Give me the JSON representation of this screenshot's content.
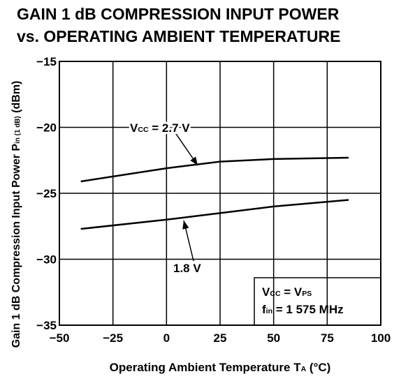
{
  "chart_data": {
    "type": "line",
    "title": [
      "GAIN 1 dB COMPRESSION INPUT POWER",
      "vs. OPERATING AMBIENT TEMPERATURE"
    ],
    "xlabel": [
      {
        "text": "Operating Ambient Temperature  T"
      },
      {
        "text": "A",
        "sub": true
      },
      {
        "text": " (°C)"
      }
    ],
    "ylabel": [
      {
        "text": "Gain 1 dB Compression Input Power  P"
      },
      {
        "text": "in (1 dB)",
        "sub": true
      },
      {
        "text": " (dBm)"
      }
    ],
    "xlim": [
      -50,
      100
    ],
    "xticks": [
      {
        "value": -50,
        "label": "−50"
      },
      {
        "value": -25,
        "label": "−25"
      },
      0,
      25,
      50,
      75,
      100
    ],
    "ylim": [
      -35,
      -15
    ],
    "yticks": [
      {
        "value": -15,
        "label": "−15"
      },
      {
        "value": -20,
        "label": "−20"
      },
      {
        "value": -25,
        "label": "−25"
      },
      {
        "value": -30,
        "label": "−30"
      },
      {
        "value": -35,
        "label": "−35"
      }
    ],
    "grid": true,
    "series": [
      {
        "label": [
          {
            "text": "V"
          },
          {
            "text": "CC",
            "sub": true
          },
          {
            "text": " = 2.7 V"
          }
        ],
        "color": "#000000",
        "x": [
          -40,
          0,
          25,
          50,
          85
        ],
        "values": [
          -24.1,
          -23.1,
          -22.6,
          -22.4,
          -22.3
        ]
      },
      {
        "label": [
          {
            "text": "1.8 V"
          }
        ],
        "color": "#000000",
        "x": [
          -40,
          0,
          25,
          50,
          85
        ],
        "values": [
          -27.7,
          -27.0,
          -26.5,
          -26.0,
          -25.5
        ]
      }
    ],
    "note": [
      [
        {
          "text": "V"
        },
        {
          "text": "CC",
          "sub": true
        },
        {
          "text": " = V"
        },
        {
          "text": "PS",
          "sub": true
        }
      ],
      [
        {
          "text": "f"
        },
        {
          "text": "in",
          "sub": true
        },
        {
          "text": " = 1 575 MHz"
        }
      ]
    ]
  }
}
